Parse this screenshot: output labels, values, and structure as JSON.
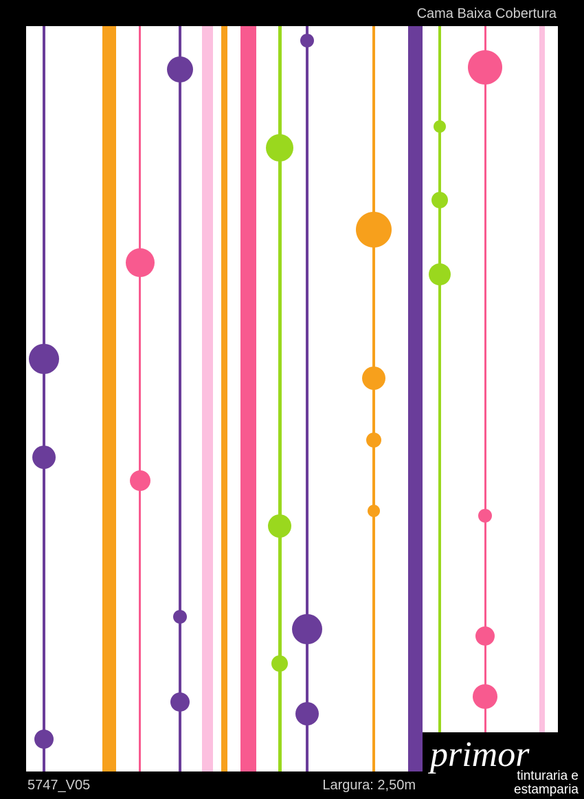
{
  "header": {
    "title": "Cama Baixa Cobertura"
  },
  "footer": {
    "code": "5747_V05",
    "width": "Largura: 2,50m"
  },
  "logo": {
    "name": "primor",
    "line1": "tinturaria e",
    "line2": "estamparia"
  }
}
